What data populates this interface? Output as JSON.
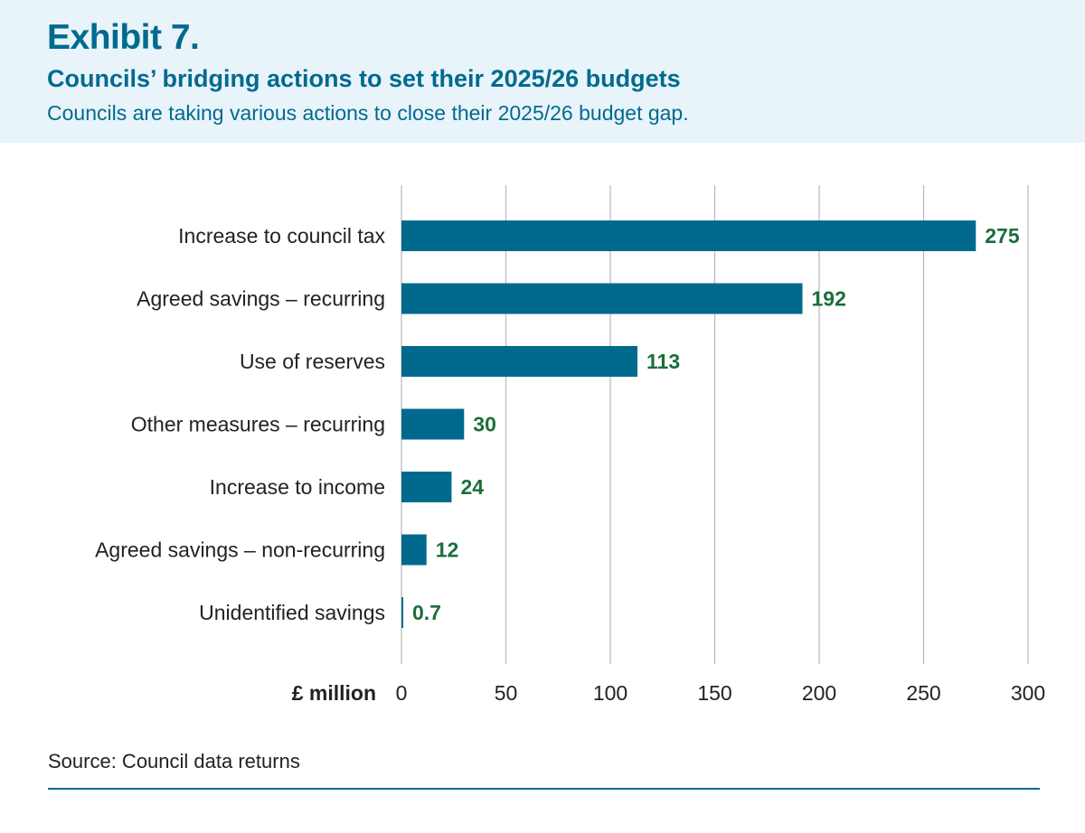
{
  "header": {
    "exhibit": "Exhibit 7.",
    "title": "Councils’ bridging actions to set their 2025/26 budgets",
    "subtitle": "Councils are taking various actions to close their 2025/26 budget gap."
  },
  "chart_data": {
    "type": "bar",
    "orientation": "horizontal",
    "categories": [
      "Increase to council tax",
      "Agreed savings – recurring",
      "Use of reserves",
      "Other measures – recurring",
      "Increase to income",
      "Agreed savings – non-recurring",
      "Unidentified savings"
    ],
    "values": [
      275,
      192,
      113,
      30,
      24,
      12,
      0.7
    ],
    "data_labels": [
      "275",
      "192",
      "113",
      "30",
      "24",
      "12",
      "0.7"
    ],
    "xlabel": "£ million",
    "xlim": [
      0,
      300
    ],
    "xticks": [
      0,
      50,
      100,
      150,
      200,
      250,
      300
    ],
    "grid": "vertical",
    "bar_color": "#006a8e",
    "label_color": "#1b6e3a"
  },
  "source": "Source: Council data returns"
}
